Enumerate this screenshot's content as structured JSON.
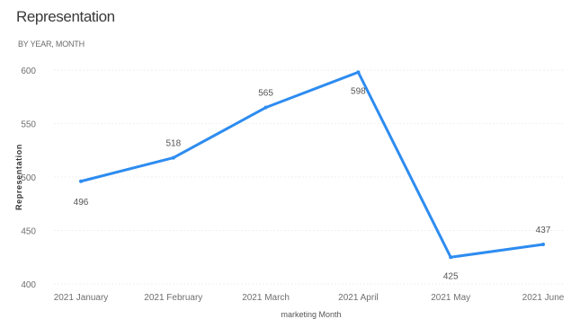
{
  "chart_data": {
    "type": "line",
    "title": "Representation",
    "subtitle": "BY YEAR, MONTH",
    "xlabel": "marketing Month",
    "ylabel": "Representation",
    "categories": [
      "2021 January",
      "2021 February",
      "2021 March",
      "2021 April",
      "2021 May",
      "2021 June"
    ],
    "series": [
      {
        "values": [
          496,
          518,
          565,
          598,
          425,
          437
        ]
      }
    ],
    "data_labels": [
      "496",
      "518",
      "565",
      "598",
      "425",
      "437"
    ],
    "ylim": [
      400,
      600
    ],
    "yticks": [
      400,
      450,
      500,
      550,
      600
    ],
    "grid": true,
    "line_color": "#2D8CF0",
    "grid_color": "#EFEFEF"
  }
}
